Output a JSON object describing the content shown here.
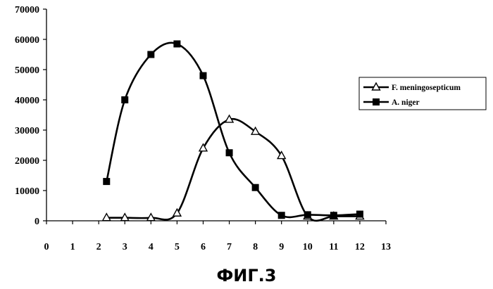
{
  "chart_data": {
    "type": "line",
    "title": "",
    "xlabel": "",
    "ylabel": "",
    "xlim": [
      0,
      13
    ],
    "ylim": [
      0,
      70000
    ],
    "xticks": [
      "0",
      "1",
      "2",
      "3",
      "4",
      "5",
      "6",
      "7",
      "8",
      "9",
      "10",
      "11",
      "12",
      "13"
    ],
    "yticks": [
      "0",
      "10000",
      "20000",
      "30000",
      "40000",
      "50000",
      "60000",
      "70000"
    ],
    "grid": false,
    "legend_position": "right",
    "series": [
      {
        "name": "F. meningosepticum",
        "marker": "triangle",
        "color": "#000000",
        "x": [
          2.3,
          3,
          4,
          5,
          6,
          7,
          8,
          9,
          10,
          11,
          12
        ],
        "y": [
          1000,
          1000,
          1000,
          2500,
          24000,
          33500,
          29500,
          21500,
          1500,
          1500,
          1500
        ]
      },
      {
        "name": "A. niger",
        "marker": "square",
        "color": "#000000",
        "x": [
          2.3,
          3,
          4,
          5,
          6,
          7,
          8,
          9,
          10,
          11,
          12
        ],
        "y": [
          13000,
          40000,
          55000,
          58500,
          48000,
          22500,
          11000,
          1800,
          2000,
          1800,
          2200
        ]
      }
    ],
    "caption": "ФИГ.3"
  }
}
